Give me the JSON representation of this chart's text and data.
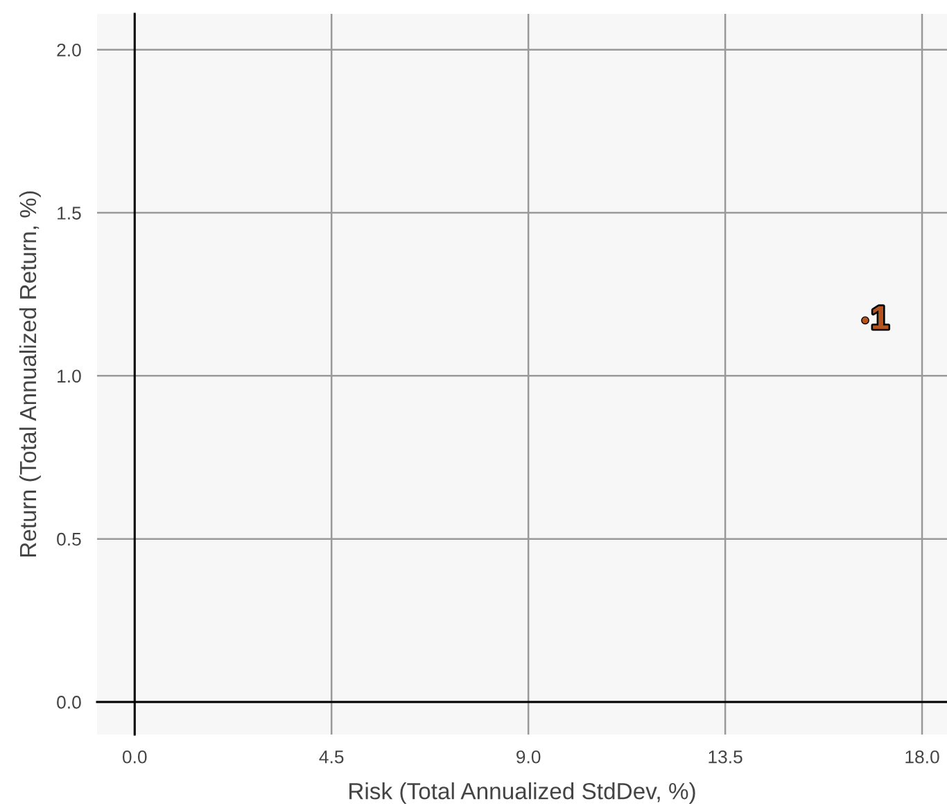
{
  "chart_data": {
    "type": "scatter",
    "xlabel": "Risk (Total Annualized StdDev, %)",
    "ylabel": "Return (Total Annualized Return, %)",
    "x": [
      16.7
    ],
    "series": [
      {
        "color": "#b5541f",
        "values": [
          1.17
        ],
        "value_labels": [
          "1"
        ]
      }
    ],
    "xlim": [
      -0.86,
      18.57
    ],
    "ylim": [
      -0.1,
      2.11
    ],
    "xticks": [
      {
        "value": 0,
        "label": "0.0"
      },
      {
        "value": 4.5,
        "label": "4.5"
      },
      {
        "value": 9,
        "label": "9.0"
      },
      {
        "value": 13.5,
        "label": "13.5"
      },
      {
        "value": 18,
        "label": "18.0"
      }
    ],
    "yticks": [
      {
        "value": 0,
        "label": "0.0"
      },
      {
        "value": 0.5,
        "label": "0.5"
      },
      {
        "value": 1,
        "label": "1.0"
      },
      {
        "value": 1.5,
        "label": "1.5"
      },
      {
        "value": 2,
        "label": "2.0"
      }
    ],
    "grid": true,
    "legend": false
  }
}
